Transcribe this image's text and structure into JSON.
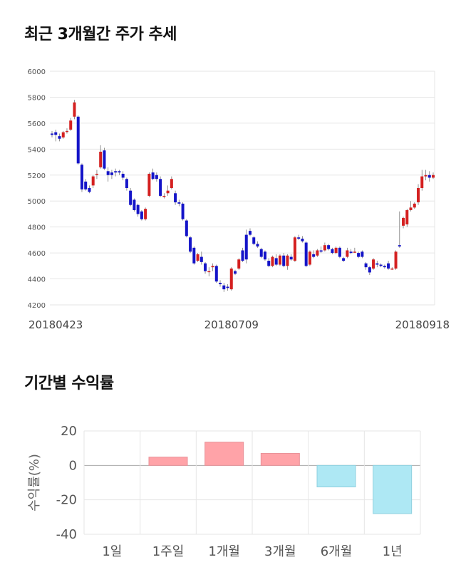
{
  "sections": {
    "price_title": "최근 3개월간 주가 추세",
    "return_title": "기간별 수익률"
  },
  "colors": {
    "up": "#d42020",
    "down": "#1414c8",
    "positive_bar": "#ffa3a8",
    "negative_bar": "#aee8f4",
    "grid": "#e6e6e6"
  },
  "chart_data": [
    {
      "type": "candlestick",
      "title": "최근 3개월간 주가 추세",
      "ylim": [
        4200,
        6000
      ],
      "yticks": [
        4200,
        4400,
        4600,
        4800,
        5000,
        5200,
        5400,
        5600,
        5800,
        6000
      ],
      "xticks": [
        "20180423",
        "20180709",
        "20180918"
      ],
      "grid": true,
      "candles": [
        [
          5520,
          5540,
          5490,
          5510
        ],
        [
          5530,
          5550,
          5460,
          5510
        ],
        [
          5500,
          5520,
          5460,
          5480
        ],
        [
          5490,
          5540,
          5480,
          5530
        ],
        [
          5540,
          5560,
          5520,
          5540
        ],
        [
          5550,
          5640,
          5540,
          5620
        ],
        [
          5650,
          5780,
          5630,
          5760
        ],
        [
          5650,
          5660,
          5280,
          5290
        ],
        [
          5280,
          5290,
          5070,
          5090
        ],
        [
          5150,
          5170,
          5080,
          5090
        ],
        [
          5100,
          5120,
          5060,
          5070
        ],
        [
          5120,
          5200,
          5100,
          5190
        ],
        [
          5210,
          5240,
          5170,
          5210
        ],
        [
          5260,
          5430,
          5250,
          5380
        ],
        [
          5390,
          5410,
          5240,
          5250
        ],
        [
          5230,
          5260,
          5150,
          5200
        ],
        [
          5220,
          5240,
          5170,
          5200
        ],
        [
          5230,
          5250,
          5190,
          5220
        ],
        [
          5230,
          5240,
          5200,
          5220
        ],
        [
          5210,
          5230,
          5160,
          5180
        ],
        [
          5170,
          5180,
          5080,
          5100
        ],
        [
          5080,
          5100,
          4960,
          4970
        ],
        [
          5010,
          5020,
          4920,
          4930
        ],
        [
          4970,
          4980,
          4880,
          4900
        ],
        [
          4920,
          4930,
          4850,
          4860
        ],
        [
          4860,
          4950,
          4850,
          4940
        ],
        [
          5040,
          5220,
          5030,
          5210
        ],
        [
          5220,
          5250,
          5160,
          5170
        ],
        [
          5200,
          5220,
          5150,
          5170
        ],
        [
          5170,
          5190,
          5030,
          5040
        ],
        [
          5040,
          5060,
          5020,
          5040
        ],
        [
          5060,
          5120,
          5040,
          5080
        ],
        [
          5100,
          5190,
          5090,
          5170
        ],
        [
          5060,
          5080,
          4970,
          4990
        ],
        [
          4990,
          5010,
          4960,
          4980
        ],
        [
          4980,
          4990,
          4850,
          4860
        ],
        [
          4850,
          4860,
          4720,
          4730
        ],
        [
          4720,
          4730,
          4600,
          4610
        ],
        [
          4640,
          4650,
          4510,
          4520
        ],
        [
          4540,
          4600,
          4530,
          4590
        ],
        [
          4570,
          4610,
          4510,
          4530
        ],
        [
          4520,
          4530,
          4440,
          4460
        ],
        [
          4460,
          4490,
          4420,
          4460
        ],
        [
          4490,
          4520,
          4460,
          4500
        ],
        [
          4500,
          4510,
          4370,
          4380
        ],
        [
          4370,
          4390,
          4340,
          4360
        ],
        [
          4350,
          4370,
          4300,
          4320
        ],
        [
          4340,
          4360,
          4310,
          4330
        ],
        [
          4320,
          4490,
          4310,
          4480
        ],
        [
          4460,
          4470,
          4430,
          4440
        ],
        [
          4480,
          4560,
          4470,
          4550
        ],
        [
          4620,
          4640,
          4530,
          4540
        ],
        [
          4740,
          4780,
          4520,
          4550
        ],
        [
          4770,
          4790,
          4730,
          4740
        ],
        [
          4720,
          4730,
          4660,
          4670
        ],
        [
          4670,
          4690,
          4640,
          4650
        ],
        [
          4630,
          4640,
          4560,
          4570
        ],
        [
          4610,
          4620,
          4540,
          4550
        ],
        [
          4540,
          4560,
          4490,
          4500
        ],
        [
          4500,
          4580,
          4490,
          4570
        ],
        [
          4560,
          4590,
          4500,
          4510
        ],
        [
          4510,
          4590,
          4500,
          4580
        ],
        [
          4580,
          4600,
          4490,
          4500
        ],
        [
          4500,
          4590,
          4470,
          4580
        ],
        [
          4570,
          4590,
          4540,
          4550
        ],
        [
          4540,
          4730,
          4530,
          4720
        ],
        [
          4720,
          4740,
          4700,
          4710
        ],
        [
          4710,
          4730,
          4680,
          4690
        ],
        [
          4680,
          4690,
          4490,
          4500
        ],
        [
          4510,
          4620,
          4500,
          4610
        ],
        [
          4590,
          4620,
          4560,
          4570
        ],
        [
          4580,
          4630,
          4570,
          4620
        ],
        [
          4620,
          4650,
          4600,
          4610
        ],
        [
          4620,
          4680,
          4610,
          4660
        ],
        [
          4660,
          4670,
          4620,
          4630
        ],
        [
          4630,
          4640,
          4590,
          4600
        ],
        [
          4600,
          4650,
          4590,
          4640
        ],
        [
          4640,
          4650,
          4560,
          4570
        ],
        [
          4560,
          4570,
          4530,
          4540
        ],
        [
          4570,
          4640,
          4560,
          4620
        ],
        [
          4610,
          4630,
          4590,
          4600
        ],
        [
          4610,
          4640,
          4600,
          4610
        ],
        [
          4600,
          4610,
          4560,
          4570
        ],
        [
          4610,
          4620,
          4560,
          4570
        ],
        [
          4520,
          4530,
          4470,
          4490
        ],
        [
          4490,
          4500,
          4430,
          4450
        ],
        [
          4480,
          4560,
          4470,
          4550
        ],
        [
          4520,
          4540,
          4490,
          4510
        ],
        [
          4510,
          4520,
          4490,
          4500
        ],
        [
          4500,
          4510,
          4480,
          4490
        ],
        [
          4520,
          4540,
          4470,
          4480
        ],
        [
          4480,
          4490,
          4470,
          4480
        ],
        [
          4480,
          4620,
          4470,
          4610
        ],
        [
          4660,
          4920,
          4640,
          4650
        ],
        [
          4810,
          4880,
          4790,
          4870
        ],
        [
          4820,
          4940,
          4800,
          4930
        ],
        [
          4930,
          5000,
          4920,
          4950
        ],
        [
          4950,
          4990,
          4940,
          4980
        ],
        [
          4990,
          5130,
          4970,
          5100
        ],
        [
          5100,
          5240,
          5080,
          5190
        ],
        [
          5190,
          5240,
          5160,
          5200
        ],
        [
          5200,
          5230,
          5150,
          5180
        ],
        [
          5180,
          5220,
          5170,
          5200
        ]
      ]
    },
    {
      "type": "bar",
      "categories": [
        "1일",
        "1주일",
        "1개월",
        "3개월",
        "6개월",
        "1년"
      ],
      "values": [
        0,
        4.8,
        13.5,
        7.0,
        -12.5,
        -28.0
      ],
      "ylabel": "수익률(%)",
      "ylim": [
        -40,
        20
      ],
      "yticks": [
        20,
        0,
        -20,
        -40
      ],
      "grid": true
    }
  ]
}
